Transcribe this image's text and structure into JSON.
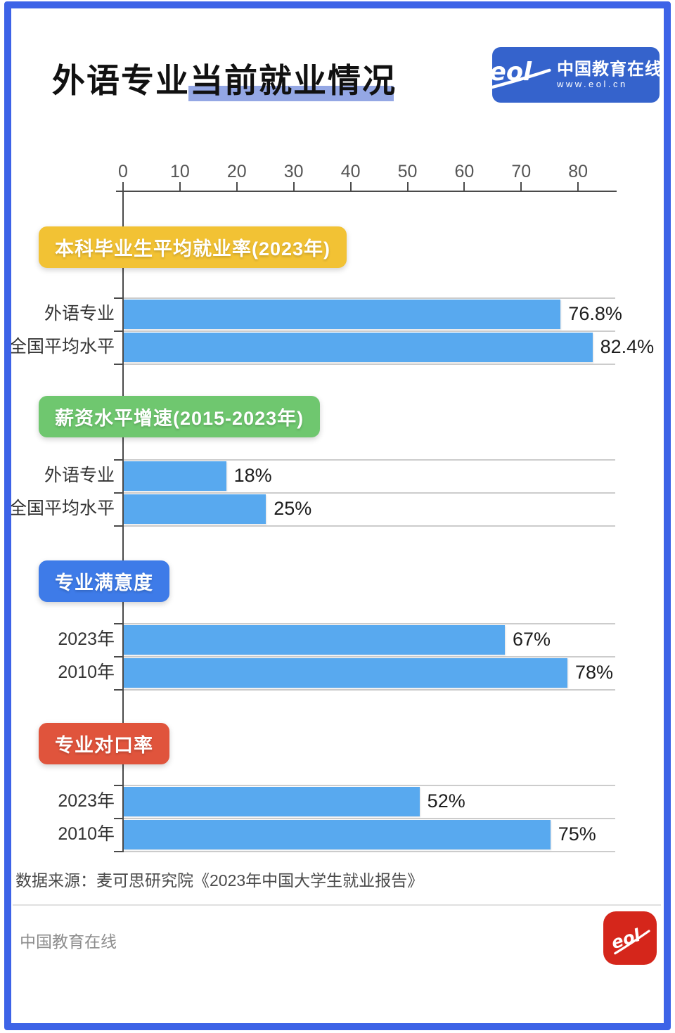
{
  "header": {
    "title": "外语专业当前就业情况",
    "logo": {
      "mark": "eol",
      "name_cn": "中国教育在线",
      "url": "www.eol.cn"
    }
  },
  "footer": {
    "source": "数据来源：麦可思研究院《2023年中国大学生就业报告》",
    "brand": "中国教育在线",
    "logo_mark": "eol"
  },
  "colors": {
    "bar": "#58A9EF",
    "badge_yellow": "#F2C234",
    "badge_green": "#6FC76F",
    "badge_blue": "#3E7BE8",
    "badge_red": "#E0543C",
    "title_highlight": "#94A7E4",
    "frame_border": "#3D63E7",
    "logo_blue": "#3563CC",
    "logo_red": "#D5261B"
  },
  "chart_data": {
    "type": "bar",
    "orientation": "horizontal",
    "bar_color": "#58A9EF",
    "grid": "row-separators",
    "legend": "none",
    "axis": {
      "min": 0,
      "max": 86.5,
      "position": "top",
      "ticks": [
        0,
        10,
        20,
        30,
        40,
        50,
        60,
        70,
        80
      ]
    },
    "sections": [
      {
        "badge": "本科毕业生平均就业率(2023年)",
        "badge_color": "#F2C234",
        "rows": [
          {
            "label": "外语专业",
            "value": 76.8,
            "value_label": "76.8%"
          },
          {
            "label": "全国平均水平",
            "value": 82.4,
            "value_label": "82.4%"
          }
        ]
      },
      {
        "badge": "薪资水平增速(2015-2023年)",
        "badge_color": "#6FC76F",
        "rows": [
          {
            "label": "外语专业",
            "value": 18,
            "value_label": "18%"
          },
          {
            "label": "全国平均水平",
            "value": 25,
            "value_label": "25%"
          }
        ]
      },
      {
        "badge": "专业满意度",
        "badge_color": "#3E7BE8",
        "rows": [
          {
            "label": "2023年",
            "value": 67,
            "value_label": "67%"
          },
          {
            "label": "2010年",
            "value": 78,
            "value_label": "78%"
          }
        ]
      },
      {
        "badge": "专业对口率",
        "badge_color": "#E0543C",
        "rows": [
          {
            "label": "2023年",
            "value": 52,
            "value_label": "52%"
          },
          {
            "label": "2010年",
            "value": 75,
            "value_label": "75%"
          }
        ]
      }
    ]
  }
}
